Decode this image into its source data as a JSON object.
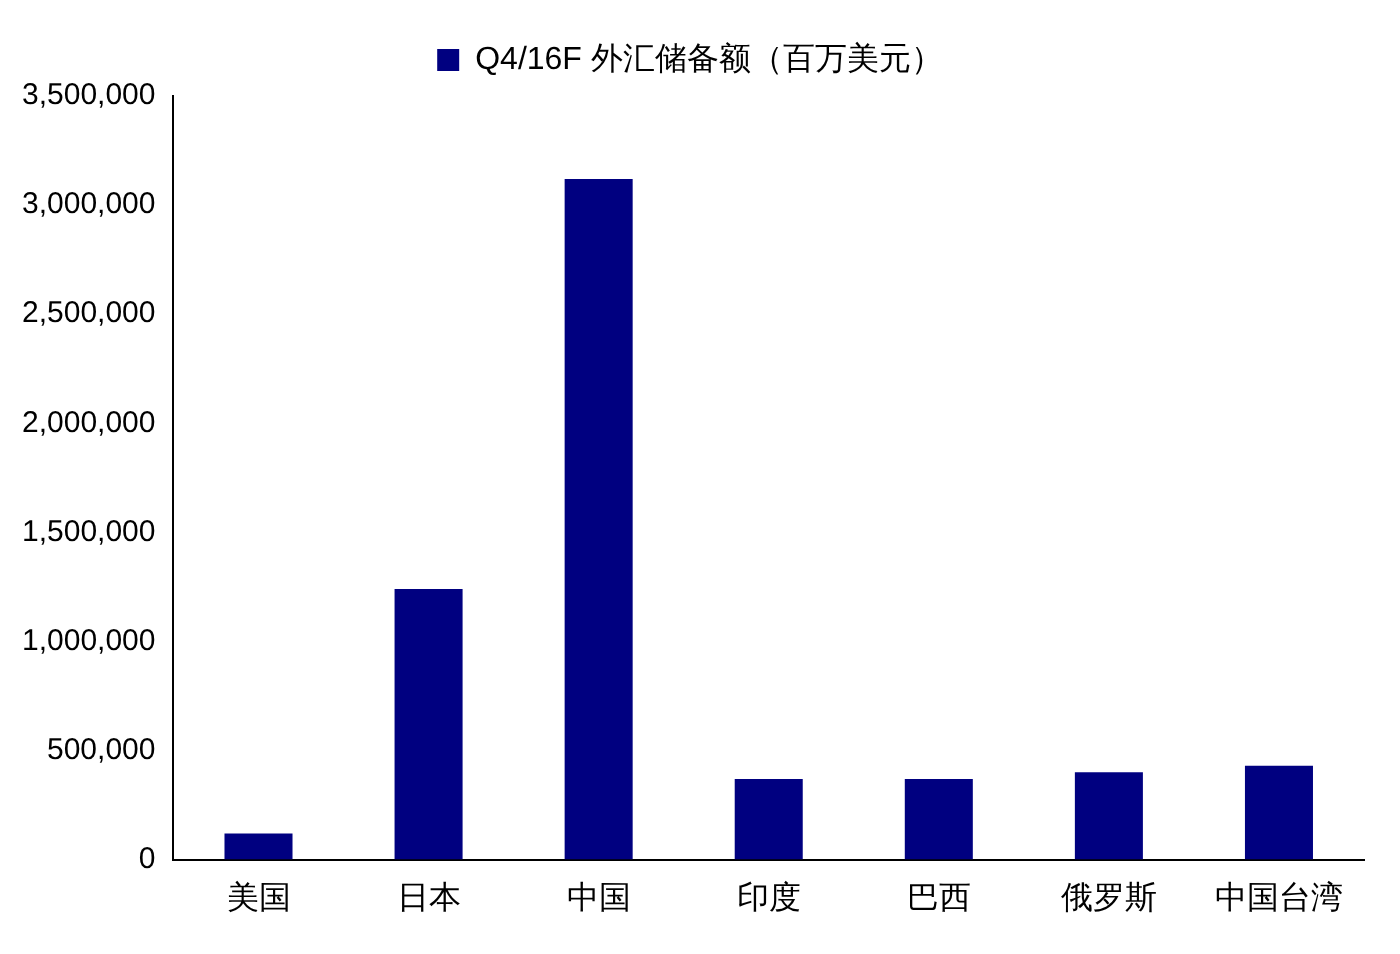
{
  "chart_data": {
    "type": "bar",
    "categories": [
      "美国",
      "日本",
      "中国",
      "印度",
      "巴西",
      "俄罗斯",
      "中国台湾"
    ],
    "series": [
      {
        "name": "Q4/16F 外汇储备额（百万美元）",
        "color": "#000080",
        "values": [
          120000,
          1240000,
          3120000,
          370000,
          370000,
          400000,
          430000
        ]
      }
    ],
    "ylim": [
      0,
      3500000
    ],
    "yticks": [
      0,
      {
        "value": 500000,
        "label": "500,000"
      },
      {
        "value": 1000000,
        "label": "1,000,000"
      },
      {
        "value": 1500000,
        "label": "1,500,000"
      },
      {
        "value": 2000000,
        "label": "2,000,000"
      },
      {
        "value": 2500000,
        "label": "2,500,000"
      },
      {
        "value": 3000000,
        "label": "3,000,000"
      },
      {
        "value": 3500000,
        "label": "3,500,000"
      }
    ],
    "grid": false,
    "legend": "top"
  }
}
